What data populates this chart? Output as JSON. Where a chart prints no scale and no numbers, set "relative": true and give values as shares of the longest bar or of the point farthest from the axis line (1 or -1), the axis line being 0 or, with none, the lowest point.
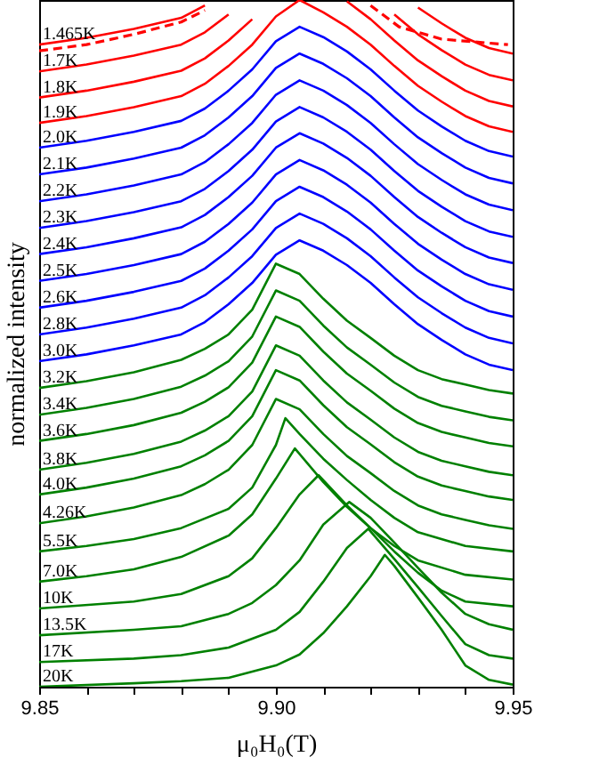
{
  "chart_data": {
    "type": "line",
    "xlabel": "μ₀H₀(T)",
    "ylabel": "normalized intensity",
    "relative": true,
    "xlim": [
      9.85,
      9.95
    ],
    "xticks": [
      9.85,
      {
        "value": 9.86,
        "label": null
      },
      {
        "value": 9.87,
        "label": null
      },
      {
        "value": 9.88,
        "label": null
      },
      {
        "value": 9.89,
        "label": null
      },
      {
        "value": 9.9,
        "label": "9.90"
      },
      {
        "value": 9.91,
        "label": null
      },
      {
        "value": 9.92,
        "label": null
      },
      {
        "value": 9.93,
        "label": null
      },
      {
        "value": 9.94,
        "label": null
      },
      9.95
    ],
    "grid": false,
    "marker": "none",
    "line_style": "solid",
    "x": [
      9.85,
      9.86,
      9.87,
      9.88,
      9.885,
      9.89,
      9.895,
      9.9,
      9.905,
      9.91,
      9.915,
      9.92,
      9.925,
      9.93,
      9.935,
      9.94,
      9.945,
      9.95
    ],
    "series": [
      {
        "name": "1.465K",
        "color": "#ff0000",
        "values": [
          0.935,
          0.945,
          0.958,
          0.974,
          0.992,
          null,
          null,
          null,
          null,
          null,
          null,
          null,
          null,
          0.989,
          0.966,
          0.945,
          0.93,
          0.922
        ]
      },
      {
        "color": "#ff0000",
        "line_style": "dashed",
        "x": [
          9.85,
          9.86,
          9.87,
          9.88,
          9.885,
          9.89,
          9.92,
          9.926,
          9.935,
          9.949
        ],
        "values": [
          0.926,
          0.935,
          0.95,
          0.968,
          0.985,
          null,
          0.992,
          0.961,
          0.943,
          0.935
        ]
      },
      {
        "name": "1.7K",
        "color": "#ff0000",
        "values": [
          0.896,
          0.906,
          0.919,
          0.935,
          0.953,
          0.979,
          null,
          null,
          null,
          null,
          null,
          null,
          0.979,
          0.95,
          0.927,
          0.906,
          0.891,
          0.883
        ]
      },
      {
        "name": "1.8K",
        "color": "#ff0000",
        "values": [
          0.858,
          0.868,
          0.881,
          0.897,
          0.915,
          0.941,
          0.972,
          null,
          null,
          null,
          0.998,
          0.972,
          0.941,
          0.912,
          0.889,
          0.868,
          0.853,
          0.845
        ]
      },
      {
        "name": "1.9K",
        "color": "#ff0000",
        "values": [
          0.821,
          0.831,
          0.844,
          0.86,
          0.878,
          0.904,
          0.935,
          0.976,
          1,
          0.982,
          0.961,
          0.935,
          0.904,
          0.875,
          0.852,
          0.831,
          0.816,
          0.808
        ]
      },
      {
        "name": "2.0K",
        "color": "#0000ff",
        "values": [
          0.785,
          0.795,
          0.808,
          0.824,
          0.842,
          0.868,
          0.899,
          0.94,
          0.961,
          0.946,
          0.925,
          0.899,
          0.868,
          0.839,
          0.816,
          0.795,
          0.78,
          0.772
        ]
      },
      {
        "name": "2.1K",
        "color": "#0000ff",
        "values": [
          0.746,
          0.756,
          0.769,
          0.785,
          0.803,
          0.829,
          0.86,
          0.901,
          0.922,
          0.907,
          0.886,
          0.86,
          0.829,
          0.8,
          0.777,
          0.756,
          0.741,
          0.733
        ]
      },
      {
        "name": "2.2K",
        "color": "#0000ff",
        "values": [
          0.707,
          0.717,
          0.73,
          0.746,
          0.764,
          0.79,
          0.821,
          0.862,
          0.883,
          0.868,
          0.847,
          0.821,
          0.79,
          0.761,
          0.738,
          0.717,
          0.702,
          0.694
        ]
      },
      {
        "name": "2.3K",
        "color": "#0000ff",
        "values": [
          0.668,
          0.678,
          0.691,
          0.707,
          0.725,
          0.751,
          0.782,
          0.823,
          0.844,
          0.829,
          0.808,
          0.782,
          0.751,
          0.722,
          0.699,
          0.678,
          0.663,
          0.655
        ]
      },
      {
        "name": "2.4K",
        "color": "#0000ff",
        "values": [
          0.63,
          0.64,
          0.653,
          0.669,
          0.687,
          0.713,
          0.744,
          0.785,
          0.806,
          0.791,
          0.77,
          0.744,
          0.713,
          0.684,
          0.661,
          0.64,
          0.625,
          0.617
        ]
      },
      {
        "name": "2.5K",
        "color": "#0000ff",
        "values": [
          0.591,
          0.601,
          0.614,
          0.63,
          0.648,
          0.674,
          0.705,
          0.746,
          0.767,
          0.752,
          0.731,
          0.705,
          0.674,
          0.645,
          0.622,
          0.601,
          0.586,
          0.578
        ]
      },
      {
        "name": "2.6K",
        "color": "#0000ff",
        "values": [
          0.552,
          0.562,
          0.575,
          0.591,
          0.609,
          0.635,
          0.666,
          0.707,
          0.728,
          0.713,
          0.692,
          0.666,
          0.635,
          0.606,
          0.583,
          0.562,
          0.547,
          0.539
        ]
      },
      {
        "name": "2.8K",
        "color": "#0000ff",
        "values": [
          0.513,
          0.523,
          0.536,
          0.552,
          0.57,
          0.596,
          0.627,
          0.668,
          0.689,
          0.674,
          0.653,
          0.627,
          0.596,
          0.567,
          0.544,
          0.523,
          0.508,
          0.5
        ]
      },
      {
        "name": "3.0K",
        "color": "#0000ff",
        "values": [
          0.474,
          0.484,
          0.497,
          0.513,
          0.531,
          0.557,
          0.588,
          0.629,
          0.65,
          0.635,
          0.614,
          0.588,
          0.557,
          0.528,
          0.505,
          0.484,
          0.469,
          0.461
        ]
      },
      {
        "name": "3.2K",
        "color": "#008000",
        "values": [
          0.435,
          0.445,
          0.458,
          0.476,
          0.492,
          0.513,
          0.549,
          0.616,
          0.601,
          0.565,
          0.533,
          0.508,
          0.482,
          0.461,
          0.448,
          0.44,
          0.432,
          0.427
        ]
      },
      {
        "name": "3.4K",
        "color": "#008000",
        "values": [
          0.396,
          0.406,
          0.419,
          0.437,
          0.453,
          0.474,
          0.51,
          0.577,
          0.562,
          0.526,
          0.494,
          0.469,
          0.443,
          0.422,
          0.409,
          0.401,
          0.393,
          0.388
        ]
      },
      {
        "name": "3.6K",
        "color": "#008000",
        "values": [
          0.358,
          0.368,
          0.381,
          0.399,
          0.415,
          0.436,
          0.472,
          0.539,
          0.524,
          0.488,
          0.456,
          0.431,
          0.405,
          0.384,
          0.371,
          0.363,
          0.355,
          0.35
        ]
      },
      {
        "name": "3.8K",
        "color": "#008000",
        "values": [
          0.316,
          0.326,
          0.339,
          0.357,
          0.373,
          0.394,
          0.43,
          0.497,
          0.482,
          0.446,
          0.414,
          0.389,
          0.363,
          0.342,
          0.329,
          0.321,
          0.313,
          0.308
        ]
      },
      {
        "name": "4.0K",
        "color": "#008000",
        "values": [
          0.28,
          0.29,
          0.303,
          0.321,
          0.337,
          0.358,
          0.394,
          0.461,
          0.446,
          0.41,
          0.378,
          0.353,
          0.327,
          0.306,
          0.293,
          0.285,
          0.277,
          0.272
        ]
      },
      {
        "name": "4.26K",
        "color": "#008000",
        "values": [
          0.238,
          0.248,
          0.261,
          0.279,
          0.295,
          0.316,
          0.352,
          0.419,
          0.404,
          0.368,
          0.336,
          0.311,
          0.285,
          0.264,
          0.251,
          0.243,
          0.235,
          0.23
        ]
      },
      {
        "name": "5.5K",
        "color": "#008000",
        "x": [
          9.85,
          9.86,
          9.87,
          9.88,
          9.89,
          9.895,
          9.9,
          9.902,
          9.905,
          9.91,
          9.915,
          9.92,
          9.925,
          9.93,
          9.94,
          9.95
        ],
        "values": [
          0.197,
          0.205,
          0.215,
          0.231,
          0.259,
          0.29,
          0.352,
          0.391,
          0.368,
          0.332,
          0.301,
          0.272,
          0.246,
          0.225,
          0.205,
          0.197
        ]
      },
      {
        "name": "7.0K",
        "color": "#008000",
        "x": [
          9.85,
          9.86,
          9.87,
          9.88,
          9.89,
          9.895,
          9.9,
          9.904,
          9.91,
          9.915,
          9.92,
          9.925,
          9.93,
          9.94,
          9.95
        ],
        "values": [
          0.153,
          0.161,
          0.171,
          0.189,
          0.22,
          0.251,
          0.303,
          0.347,
          0.298,
          0.262,
          0.231,
          0.205,
          0.184,
          0.163,
          0.156
        ]
      },
      {
        "name": "10K",
        "color": "#008000",
        "x": [
          9.85,
          9.87,
          9.88,
          9.89,
          9.895,
          9.9,
          9.905,
          9.909,
          9.915,
          9.92,
          9.925,
          9.93,
          9.935,
          9.94,
          9.95
        ],
        "values": [
          0.114,
          0.124,
          0.135,
          0.161,
          0.187,
          0.231,
          0.28,
          0.308,
          0.264,
          0.231,
          0.197,
          0.166,
          0.14,
          0.124,
          0.117
        ]
      },
      {
        "name": "13.5K",
        "color": "#008000",
        "x": [
          9.85,
          9.87,
          9.88,
          9.89,
          9.895,
          9.9,
          9.905,
          9.91,
          9.9155,
          9.92,
          9.925,
          9.93,
          9.935,
          9.94,
          9.945,
          9.95
        ],
        "values": [
          0.075,
          0.083,
          0.088,
          0.106,
          0.122,
          0.148,
          0.184,
          0.236,
          0.269,
          0.246,
          0.21,
          0.173,
          0.137,
          0.106,
          0.091,
          0.083
        ]
      },
      {
        "name": "17K",
        "color": "#008000",
        "x": [
          9.85,
          9.87,
          9.88,
          9.89,
          9.9,
          9.905,
          9.91,
          9.915,
          9.9195,
          9.925,
          9.93,
          9.935,
          9.94,
          9.945,
          9.95
        ],
        "values": [
          0.036,
          0.041,
          0.046,
          0.057,
          0.083,
          0.109,
          0.153,
          0.202,
          0.23,
          0.186,
          0.145,
          0.103,
          0.062,
          0.046,
          0.041
        ]
      },
      {
        "name": "20K",
        "color": "#008000",
        "x": [
          9.85,
          9.87,
          9.88,
          9.89,
          9.9,
          9.905,
          9.91,
          9.915,
          9.92,
          9.923,
          9.925,
          9.93,
          9.935,
          9.94,
          9.945,
          9.95
        ],
        "values": [
          0,
          0.005,
          0.008,
          0.013,
          0.031,
          0.047,
          0.078,
          0.117,
          0.161,
          0.192,
          0.176,
          0.13,
          0.083,
          0.031,
          0.01,
          0.003
        ]
      }
    ]
  }
}
